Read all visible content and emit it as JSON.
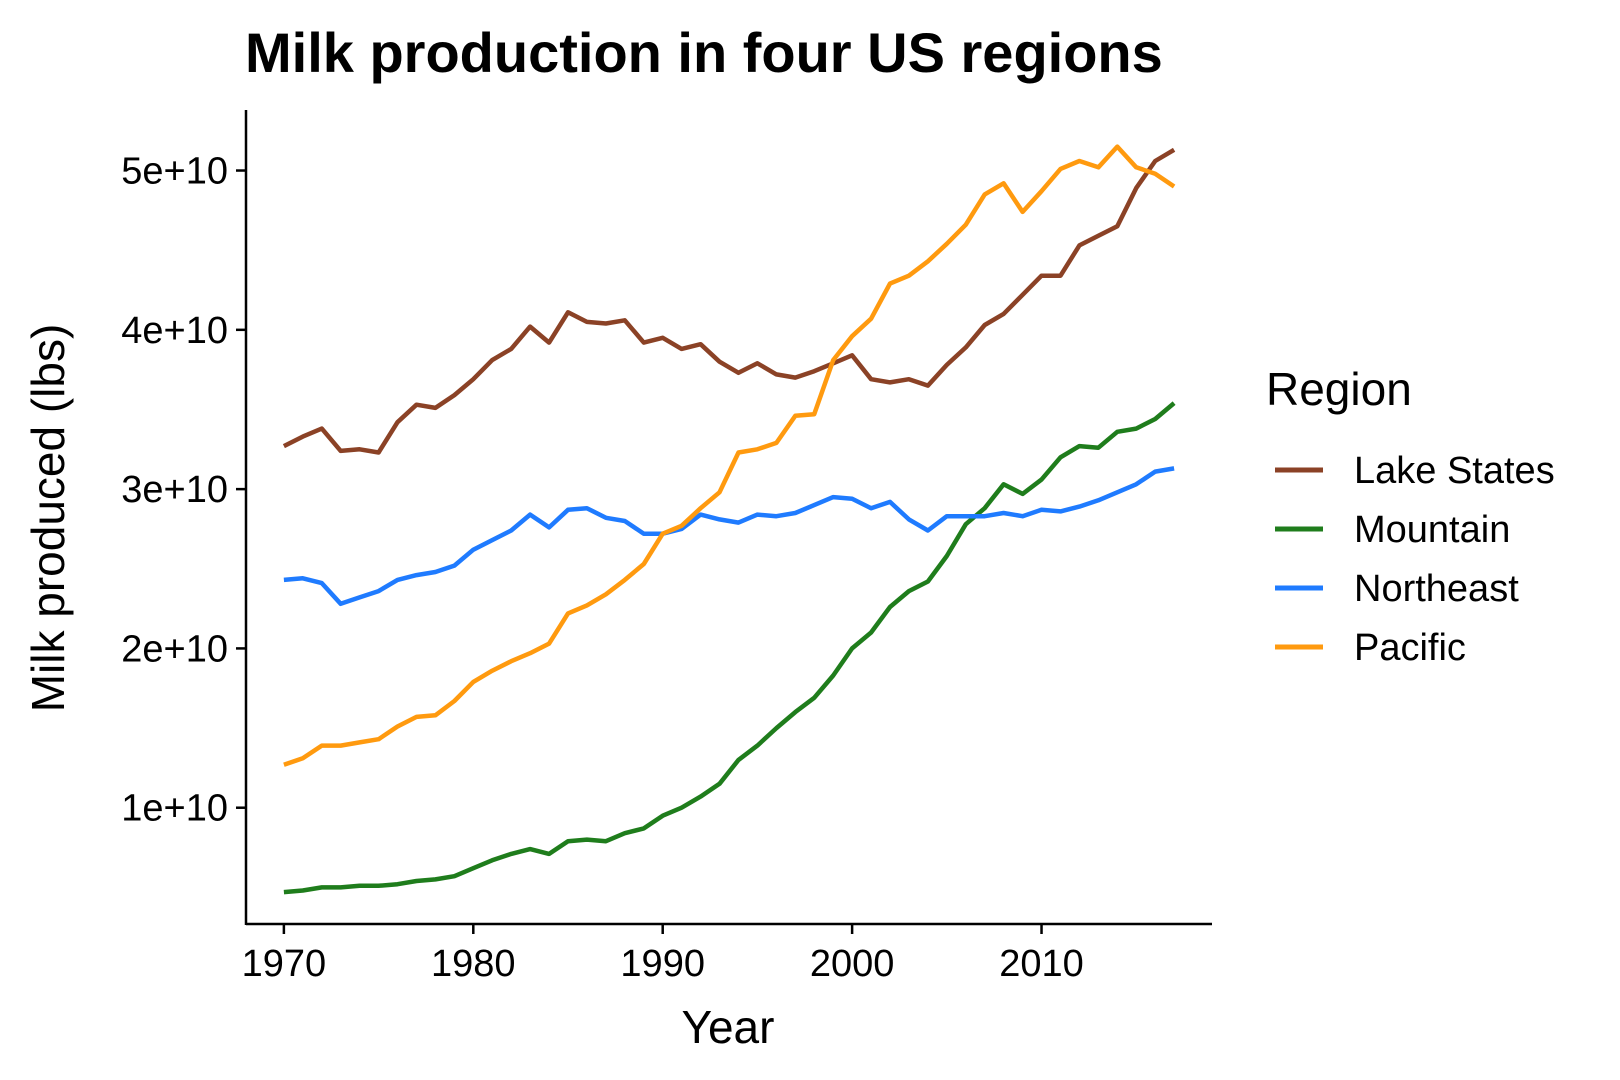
{
  "chart_data": {
    "type": "line",
    "title": "Milk production in four US regions",
    "xlabel": "Year",
    "ylabel": "Milk produced (lbs)",
    "xlim": [
      1968,
      2019
    ],
    "ylim": [
      2700000000,
      53800000000
    ],
    "x_ticks": [
      1970,
      1980,
      1990,
      2000,
      2010
    ],
    "y_ticks": [
      10000000000,
      20000000000,
      30000000000,
      40000000000,
      50000000000
    ],
    "y_tick_labels": [
      "1e+10",
      "2e+10",
      "3e+10",
      "4e+10",
      "5e+10"
    ],
    "x": [
      1970,
      1971,
      1972,
      1973,
      1974,
      1975,
      1976,
      1977,
      1978,
      1979,
      1980,
      1981,
      1982,
      1983,
      1984,
      1985,
      1986,
      1987,
      1988,
      1989,
      1990,
      1991,
      1992,
      1993,
      1994,
      1995,
      1996,
      1997,
      1998,
      1999,
      2000,
      2001,
      2002,
      2003,
      2004,
      2005,
      2006,
      2007,
      2008,
      2009,
      2010,
      2011,
      2012,
      2013,
      2014,
      2015,
      2016,
      2017
    ],
    "legend": {
      "title": "Region",
      "position": "right"
    },
    "grid": false,
    "series": [
      {
        "name": "Lake States",
        "color": "#8B4226",
        "values": [
          32.7,
          33.3,
          33.8,
          32.4,
          32.5,
          32.3,
          34.2,
          35.3,
          35.1,
          35.9,
          36.9,
          38.1,
          38.8,
          40.2,
          39.2,
          41.1,
          40.5,
          40.4,
          40.6,
          39.2,
          39.5,
          38.8,
          39.1,
          38.0,
          37.3,
          37.9,
          37.2,
          37.0,
          37.4,
          37.9,
          38.4,
          36.9,
          36.7,
          36.9,
          36.5,
          37.8,
          38.9,
          40.3,
          41.0,
          42.2,
          43.4,
          43.4,
          45.3,
          45.9,
          46.5,
          48.9,
          50.6,
          51.3
        ]
      },
      {
        "name": "Mountain",
        "color": "#1F7D1C",
        "values": [
          4.7,
          4.8,
          5.0,
          5.0,
          5.1,
          5.1,
          5.2,
          5.4,
          5.5,
          5.7,
          6.2,
          6.7,
          7.1,
          7.4,
          7.1,
          7.9,
          8.0,
          7.9,
          8.4,
          8.7,
          9.5,
          10.0,
          10.7,
          11.5,
          13.0,
          13.9,
          15.0,
          16.0,
          16.9,
          18.3,
          20.0,
          21.0,
          22.6,
          23.6,
          24.2,
          25.8,
          27.8,
          28.8,
          30.3,
          29.7,
          30.6,
          32.0,
          32.7,
          32.6,
          33.6,
          33.8,
          34.4,
          35.4
        ]
      },
      {
        "name": "Northeast",
        "color": "#1F7BFF",
        "values": [
          24.3,
          24.4,
          24.1,
          22.8,
          23.2,
          23.6,
          24.3,
          24.6,
          24.8,
          25.2,
          26.2,
          26.8,
          27.4,
          28.4,
          27.6,
          28.7,
          28.8,
          28.2,
          28.0,
          27.2,
          27.2,
          27.5,
          28.4,
          28.1,
          27.9,
          28.4,
          28.3,
          28.5,
          29.0,
          29.5,
          29.4,
          28.8,
          29.2,
          28.1,
          27.4,
          28.3,
          28.3,
          28.3,
          28.5,
          28.3,
          28.7,
          28.6,
          28.9,
          29.3,
          29.8,
          30.3,
          31.1,
          31.3
        ]
      },
      {
        "name": "Pacific",
        "color": "#FF9A0F",
        "values": [
          12.7,
          13.1,
          13.9,
          13.9,
          14.1,
          14.3,
          15.1,
          15.7,
          15.8,
          16.7,
          17.9,
          18.6,
          19.2,
          19.7,
          20.3,
          22.2,
          22.7,
          23.4,
          24.3,
          25.3,
          27.2,
          27.7,
          28.8,
          29.8,
          32.3,
          32.5,
          32.9,
          34.6,
          34.7,
          38.1,
          39.6,
          40.7,
          42.9,
          43.4,
          44.3,
          45.4,
          46.6,
          48.5,
          49.2,
          47.4,
          48.7,
          50.1,
          50.6,
          50.2,
          51.5,
          50.2,
          49.8,
          49.0
        ]
      }
    ]
  }
}
